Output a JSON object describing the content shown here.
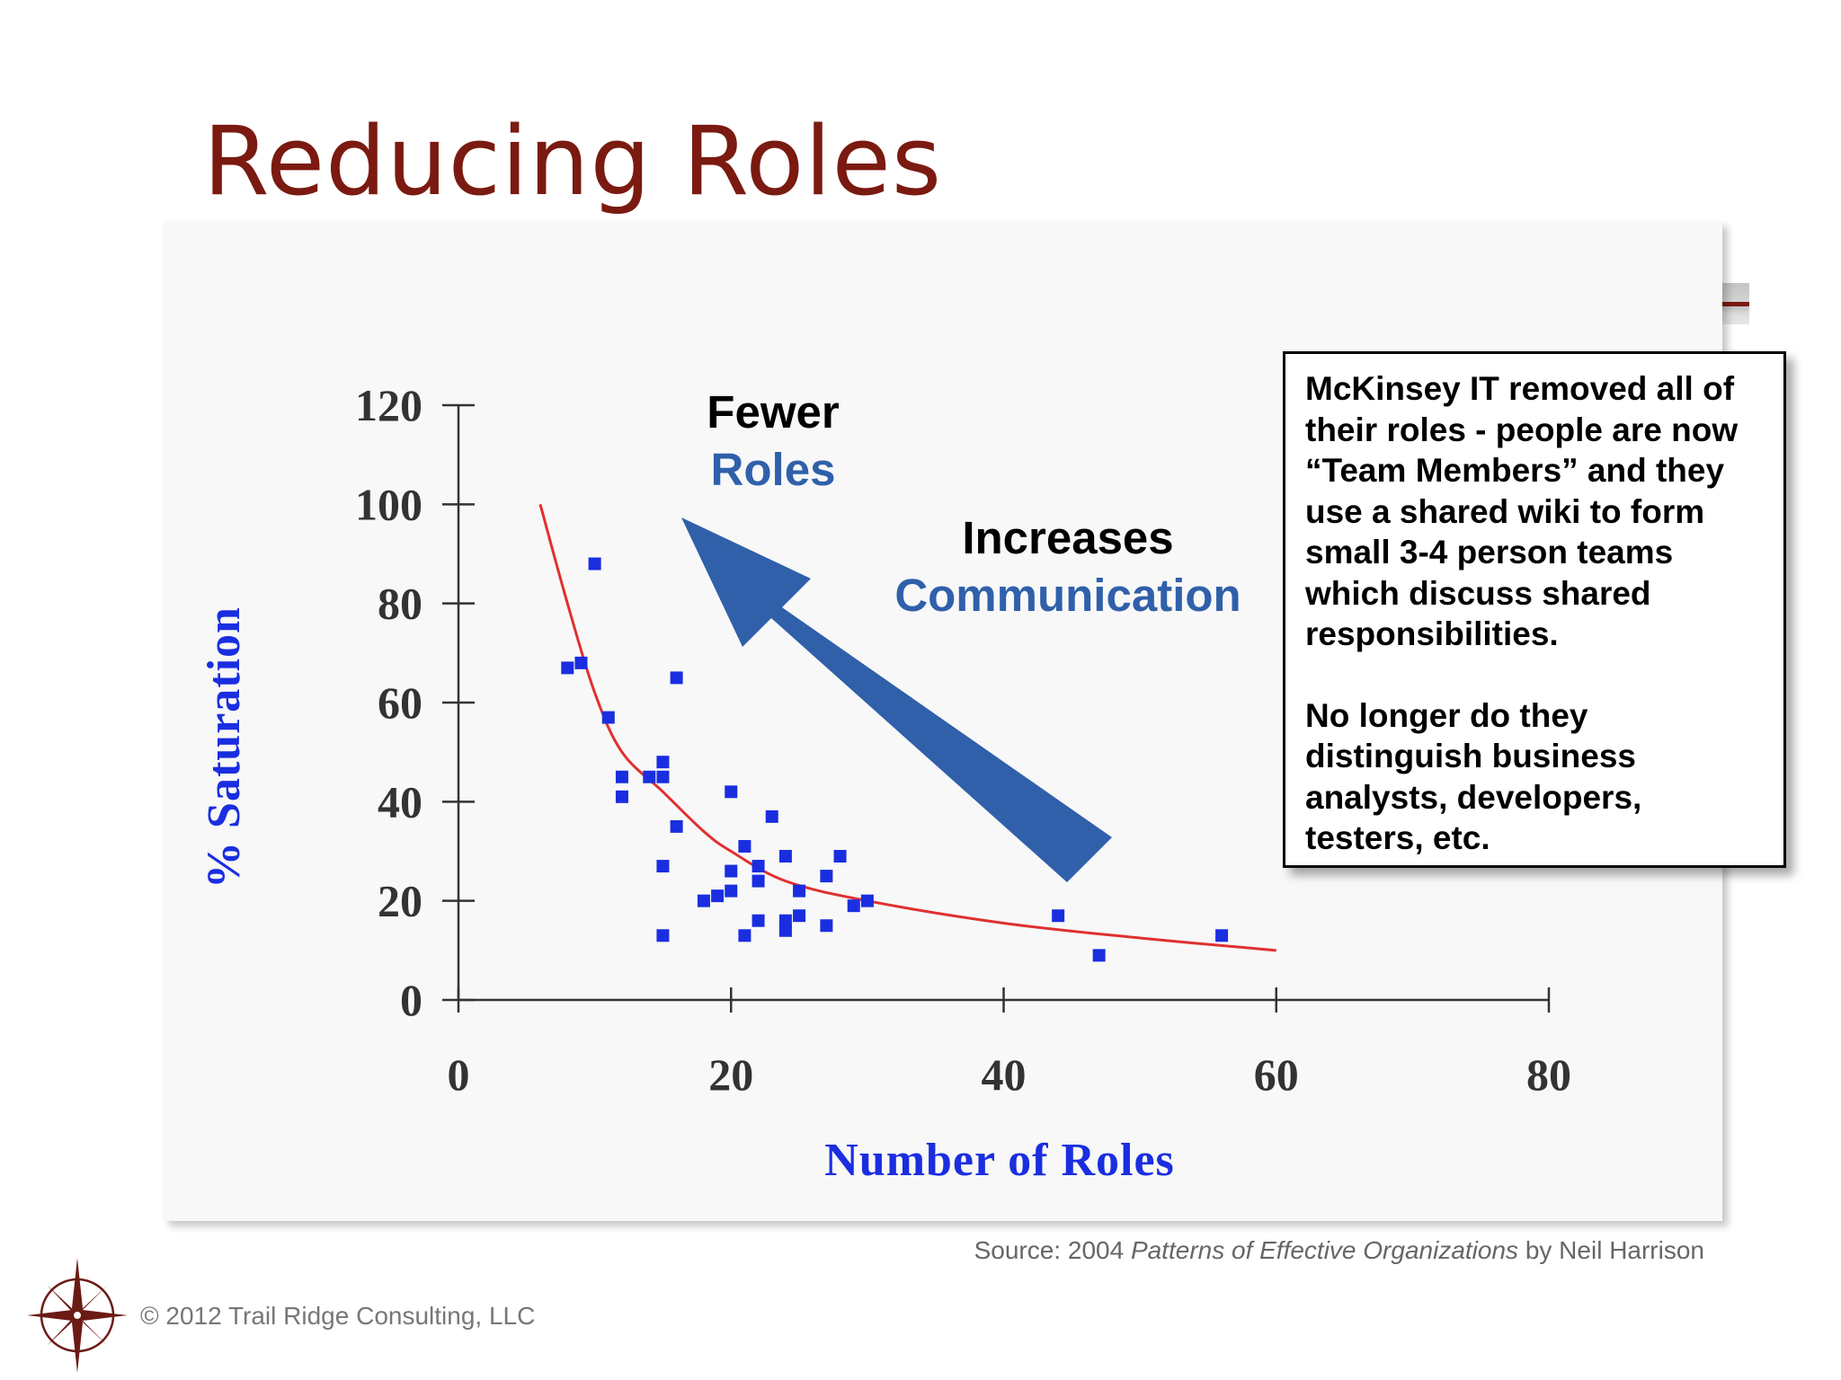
{
  "slide": {
    "title": "Reducing Roles",
    "source_prefix": "Source: 2004 ",
    "source_book": "Patterns of Effective Organizations",
    "source_suffix": " by Neil Harrison",
    "copyright": "© 2012 Trail Ridge Consulting, LLC",
    "accent_color": "#7a1a10"
  },
  "annotations": {
    "fewer": "Fewer",
    "roles": "Roles",
    "increases": "Increases",
    "communication": "Communication",
    "arrow_color": "#3060aa"
  },
  "callout": {
    "paragraph1": "McKinsey IT removed all of their roles - people are now “Team Members” and they use a shared wiki to form small 3-4 person teams which discuss shared responsibilities.",
    "paragraph2": "No longer do they distinguish business analysts, developers, testers, etc."
  },
  "chart_data": {
    "type": "scatter",
    "xlabel": "Number of Roles",
    "ylabel": "% Saturation",
    "xlim": [
      0,
      80
    ],
    "ylim": [
      0,
      120
    ],
    "xticks": [
      0,
      20,
      40,
      60,
      80
    ],
    "yticks": [
      0,
      20,
      40,
      60,
      80,
      100,
      120
    ],
    "grid": false,
    "point_color": "#1a2ee0",
    "curve_color": "#e03030",
    "points": [
      [
        8,
        67
      ],
      [
        9,
        68
      ],
      [
        10,
        88
      ],
      [
        11,
        57
      ],
      [
        12,
        45
      ],
      [
        12,
        41
      ],
      [
        14,
        45
      ],
      [
        15,
        48
      ],
      [
        15,
        45
      ],
      [
        15,
        27
      ],
      [
        15,
        13
      ],
      [
        16,
        35
      ],
      [
        16,
        65
      ],
      [
        18,
        20
      ],
      [
        19,
        21
      ],
      [
        20,
        22
      ],
      [
        20,
        26
      ],
      [
        20,
        42
      ],
      [
        21,
        31
      ],
      [
        21,
        13
      ],
      [
        22,
        27
      ],
      [
        22,
        24
      ],
      [
        22,
        16
      ],
      [
        23,
        37
      ],
      [
        24,
        29
      ],
      [
        24,
        14
      ],
      [
        24,
        16
      ],
      [
        25,
        17
      ],
      [
        25,
        22
      ],
      [
        27,
        25
      ],
      [
        27,
        15
      ],
      [
        28,
        29
      ],
      [
        29,
        19
      ],
      [
        30,
        20
      ],
      [
        44,
        17
      ],
      [
        47,
        9
      ],
      [
        56,
        13
      ]
    ],
    "trend": [
      [
        6,
        100
      ],
      [
        8,
        80
      ],
      [
        10,
        62
      ],
      [
        12,
        50
      ],
      [
        15,
        42
      ],
      [
        18,
        34
      ],
      [
        20,
        30
      ],
      [
        24,
        24
      ],
      [
        30,
        20
      ],
      [
        40,
        15.5
      ],
      [
        50,
        12.5
      ],
      [
        60,
        10
      ]
    ]
  }
}
